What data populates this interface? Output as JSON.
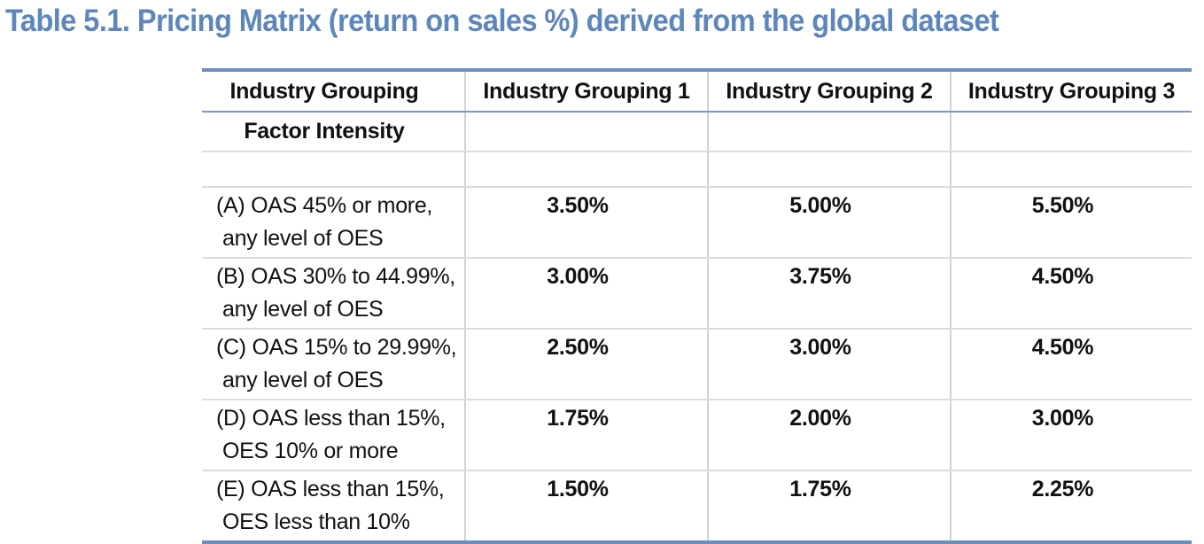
{
  "title": "Table 5.1. Pricing Matrix (return on sales %) derived from the global dataset",
  "table": {
    "header": {
      "row_label": "Industry Grouping",
      "columns": [
        "Industry Grouping 1",
        "Industry Grouping 2",
        "Industry Grouping 3"
      ]
    },
    "subheader": {
      "row_label": "Factor Intensity"
    },
    "rows": [
      {
        "label_line1": "(A) OAS 45% or more,",
        "label_line2": "any level of OES",
        "values": [
          "3.50%",
          "5.00%",
          "5.50%"
        ]
      },
      {
        "label_line1": "(B) OAS 30% to 44.99%,",
        "label_line2": "any level of OES",
        "values": [
          "3.00%",
          "3.75%",
          "4.50%"
        ]
      },
      {
        "label_line1": "(C) OAS 15% to 29.99%,",
        "label_line2": "any level of OES",
        "values": [
          "2.50%",
          "3.00%",
          "4.50%"
        ]
      },
      {
        "label_line1": "(D) OAS less than 15%,",
        "label_line2": "OES 10% or more",
        "values": [
          "1.75%",
          "2.00%",
          "3.00%"
        ]
      },
      {
        "label_line1": "(E) OAS less than 15%,",
        "label_line2": "OES less than 10%",
        "values": [
          "1.50%",
          "1.75%",
          "2.25%"
        ]
      }
    ]
  },
  "colors": {
    "title": "#5d86bb",
    "rule": "#6d8dbd",
    "grid": "#d8dbe0"
  }
}
